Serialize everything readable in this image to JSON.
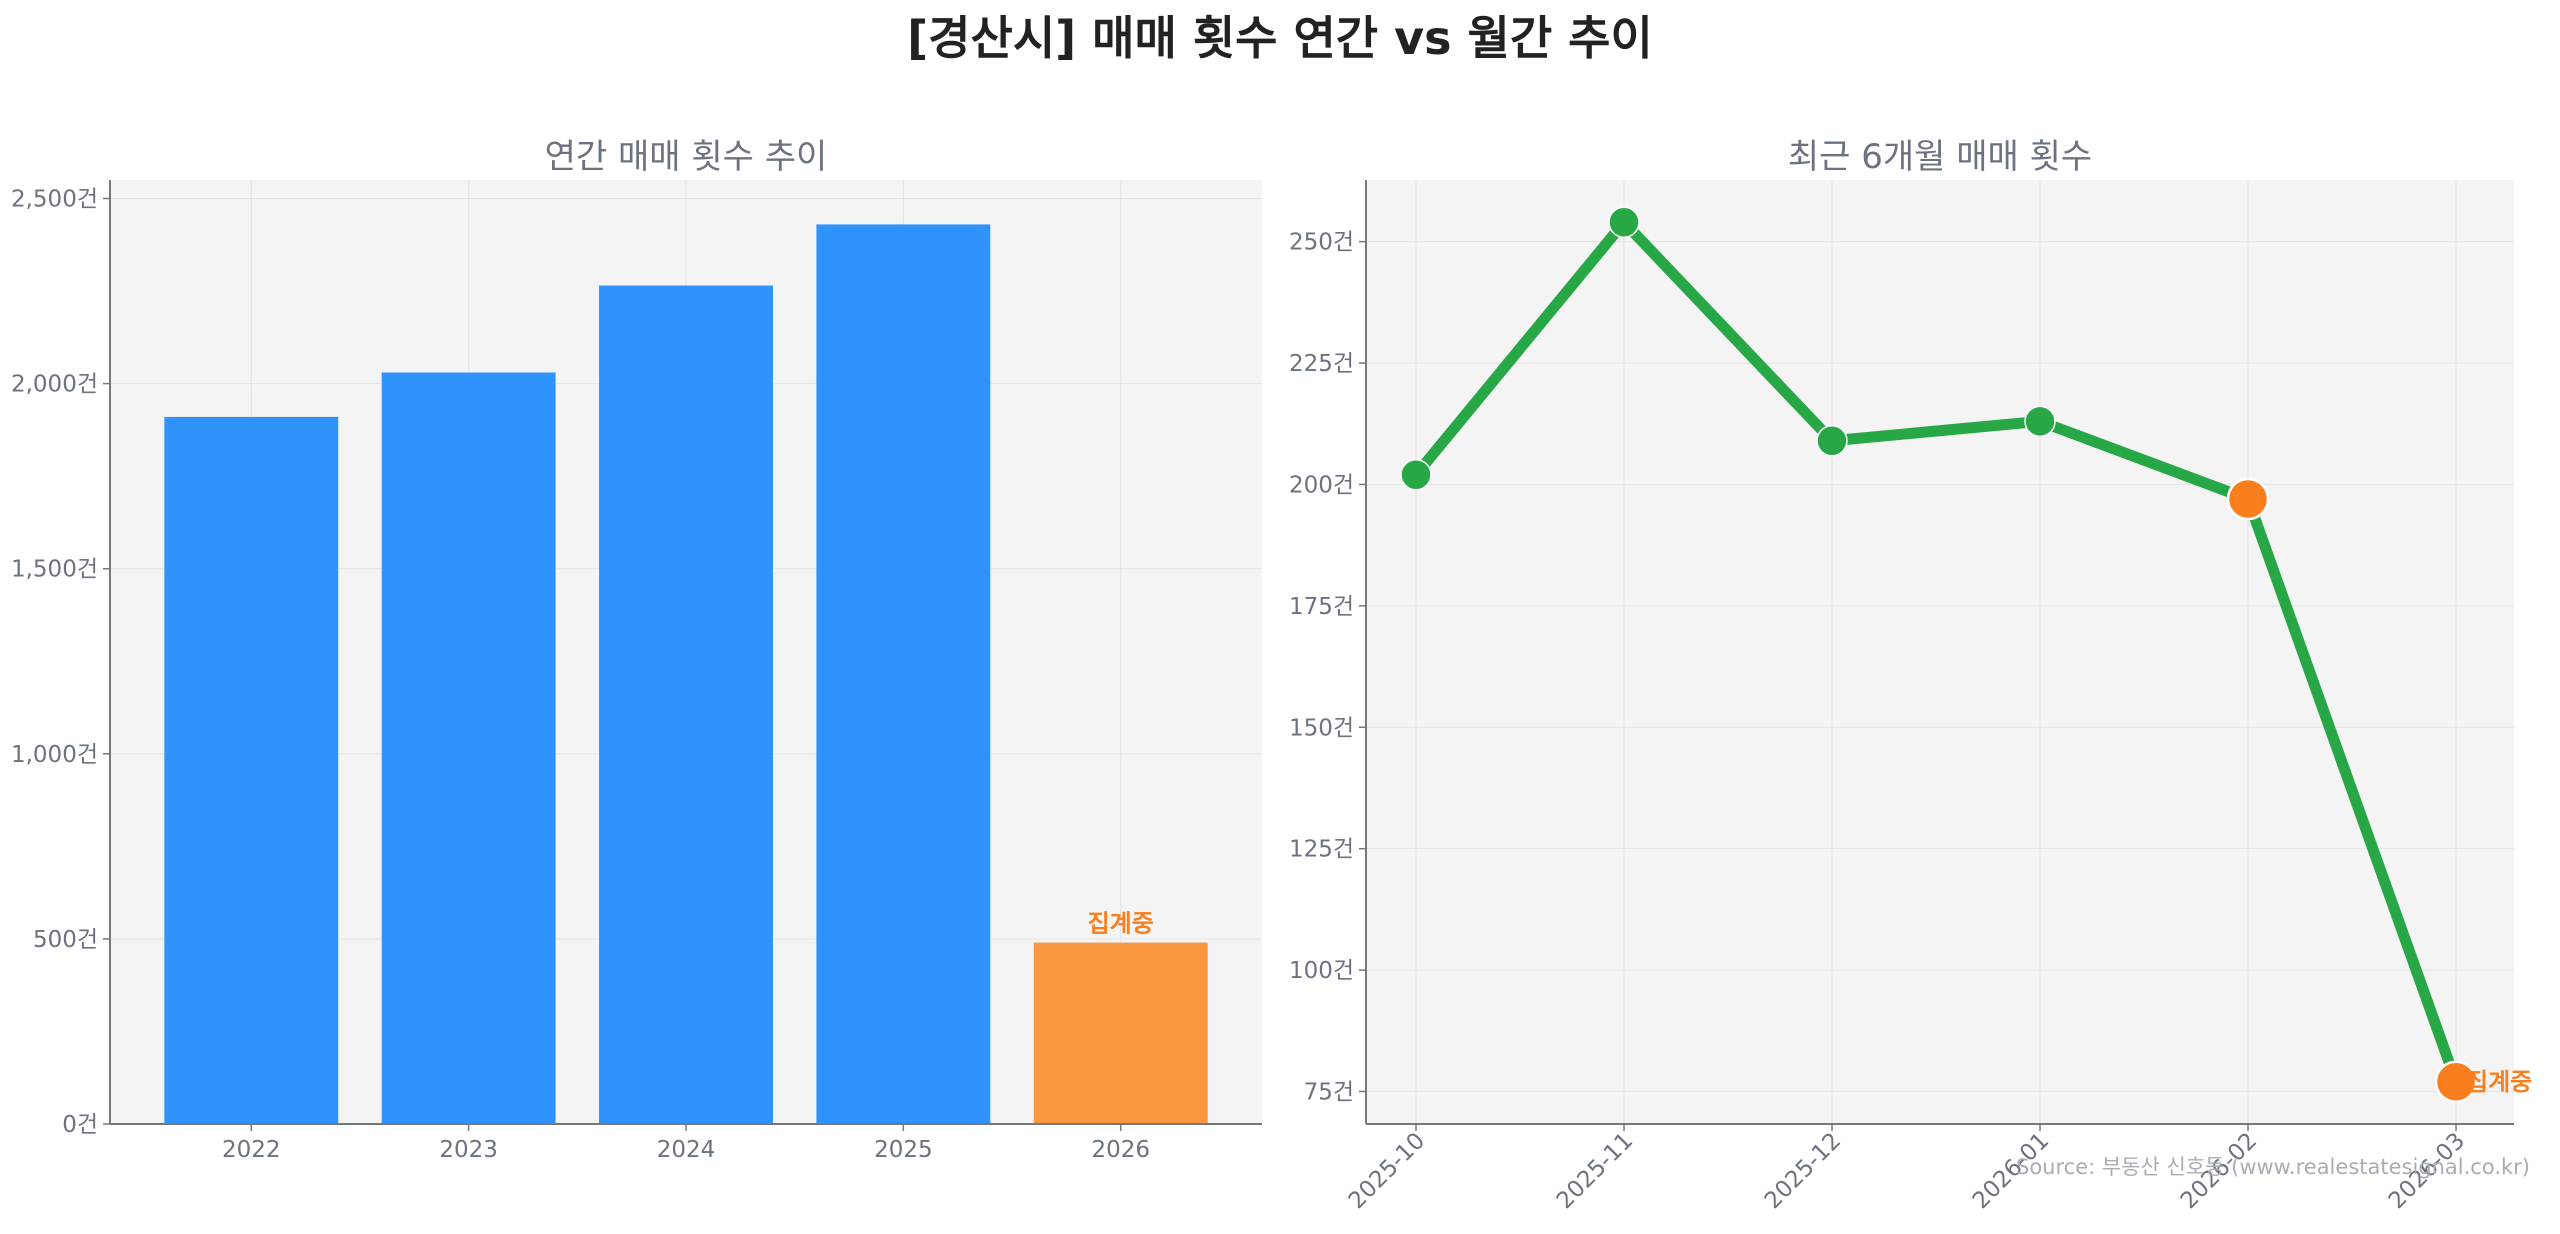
{
  "title": "[경산시] 매매 횟수 연간 vs 월간 추이",
  "source": "Source: 부동산 신호등 (www.realestatesignal.co.kr)",
  "colors": {
    "bar": "#3092fb",
    "bar_highlight": "#f9963f",
    "line": "#27a745",
    "highlight": "#f97f1e",
    "panel_bg": "#f4f4f4",
    "grid": "#e4e4e4",
    "axis": "#777777"
  },
  "chart_data": [
    {
      "type": "bar",
      "title": "연간 매매 횟수 추이",
      "categories": [
        "2022",
        "2023",
        "2024",
        "2025",
        "2026"
      ],
      "values": [
        1910,
        2030,
        2265,
        2430,
        490
      ],
      "highlight_index": 4,
      "annotation": "집계중",
      "y_ticks": [
        {
          "value": 0,
          "label": "0건"
        },
        {
          "value": 500,
          "label": "500건"
        },
        {
          "value": 1000,
          "label": "1,000건"
        },
        {
          "value": 1500,
          "label": "1,500건"
        },
        {
          "value": 2000,
          "label": "2,000건"
        },
        {
          "value": 2500,
          "label": "2,500건"
        }
      ],
      "ylim": [
        0,
        2550
      ],
      "grid": true
    },
    {
      "type": "line",
      "title": "최근 6개월 매매 횟수",
      "x": [
        "2025-10",
        "2025-11",
        "2025-12",
        "2026-01",
        "2026-02",
        "2026-03"
      ],
      "values": [
        202,
        254,
        209,
        213,
        197,
        77
      ],
      "highlight_indices": [
        4,
        5
      ],
      "annotation": "집계중",
      "annotation_index": 5,
      "y_ticks": [
        {
          "value": 75,
          "label": "75건"
        },
        {
          "value": 100,
          "label": "100건"
        },
        {
          "value": 125,
          "label": "125건"
        },
        {
          "value": 150,
          "label": "150건"
        },
        {
          "value": 175,
          "label": "175건"
        },
        {
          "value": 200,
          "label": "200건"
        },
        {
          "value": 225,
          "label": "225건"
        },
        {
          "value": 250,
          "label": "250건"
        }
      ],
      "ylim": [
        68.3,
        262.7
      ],
      "grid": true
    }
  ]
}
